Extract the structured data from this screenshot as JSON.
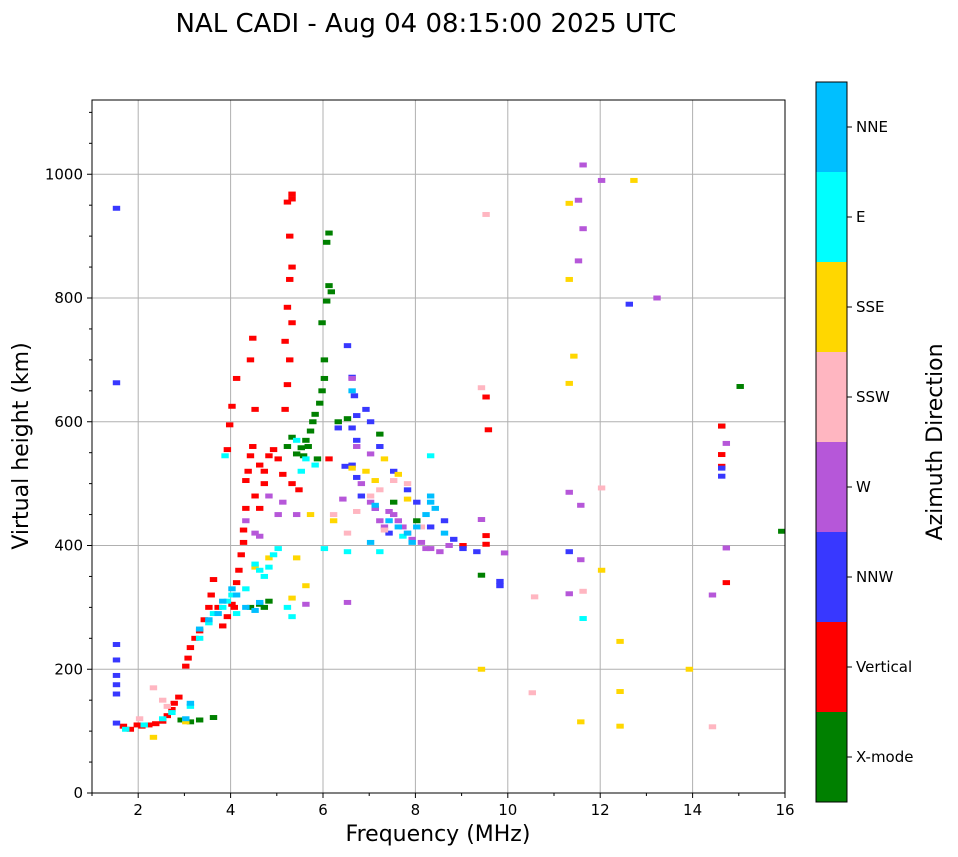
{
  "chart_data": {
    "type": "scatter",
    "title": "NAL CADI - Aug 04 08:15:00 2025 UTC",
    "xlabel": "Frequency (MHz)",
    "ylabel": "Virtual height (km)",
    "xlim": [
      1,
      16
    ],
    "ylim": [
      0,
      1120
    ],
    "xticks": [
      2,
      4,
      6,
      8,
      10,
      12,
      14,
      16
    ],
    "yticks": [
      0,
      200,
      400,
      600,
      800,
      1000
    ],
    "grid": true,
    "colorbar": {
      "label": "Azimuth Direction",
      "categories": [
        {
          "name": "X-mode",
          "color": "#008000"
        },
        {
          "name": "Vertical",
          "color": "#ff0000"
        },
        {
          "name": "NNW",
          "color": "#3838ff"
        },
        {
          "name": "W",
          "color": "#b657d9"
        },
        {
          "name": "SSW",
          "color": "#ffb6c1"
        },
        {
          "name": "SSE",
          "color": "#ffd700"
        },
        {
          "name": "E",
          "color": "#00ffff"
        },
        {
          "name": "NNE",
          "color": "#00bfff"
        }
      ]
    },
    "series": [
      {
        "name": "X-mode",
        "points": [
          [
            2.9,
            118
          ],
          [
            3.1,
            115
          ],
          [
            3.3,
            118
          ],
          [
            3.6,
            122
          ],
          [
            4.4,
            300
          ],
          [
            4.6,
            305
          ],
          [
            4.7,
            300
          ],
          [
            4.8,
            310
          ],
          [
            5.2,
            560
          ],
          [
            5.4,
            548
          ],
          [
            5.5,
            558
          ],
          [
            5.6,
            570
          ],
          [
            5.7,
            585
          ],
          [
            5.75,
            600
          ],
          [
            5.8,
            612
          ],
          [
            5.9,
            630
          ],
          [
            5.95,
            650
          ],
          [
            6.0,
            670
          ],
          [
            6.0,
            700
          ],
          [
            5.95,
            760
          ],
          [
            6.05,
            795
          ],
          [
            6.1,
            820
          ],
          [
            6.1,
            905
          ],
          [
            6.05,
            890
          ],
          [
            5.85,
            540
          ],
          [
            5.65,
            560
          ],
          [
            6.3,
            600
          ],
          [
            6.5,
            605
          ],
          [
            7.2,
            580
          ],
          [
            7.5,
            470
          ],
          [
            8.0,
            440
          ],
          [
            9.4,
            352
          ],
          [
            15.0,
            657
          ],
          [
            15.9,
            423
          ],
          [
            14.6,
            593
          ],
          [
            5.3,
            575
          ],
          [
            5.55,
            545
          ],
          [
            6.15,
            810
          ]
        ]
      },
      {
        "name": "Vertical",
        "points": [
          [
            1.65,
            108
          ],
          [
            1.8,
            103
          ],
          [
            1.95,
            110
          ],
          [
            2.05,
            108
          ],
          [
            2.2,
            110
          ],
          [
            2.35,
            112
          ],
          [
            2.5,
            116
          ],
          [
            2.6,
            125
          ],
          [
            2.7,
            135
          ],
          [
            2.75,
            145
          ],
          [
            2.85,
            155
          ],
          [
            3.0,
            205
          ],
          [
            3.05,
            218
          ],
          [
            3.1,
            235
          ],
          [
            3.2,
            250
          ],
          [
            3.3,
            262
          ],
          [
            3.4,
            280
          ],
          [
            3.5,
            300
          ],
          [
            3.55,
            320
          ],
          [
            3.6,
            345
          ],
          [
            3.7,
            300
          ],
          [
            3.8,
            270
          ],
          [
            3.9,
            285
          ],
          [
            4.0,
            305
          ],
          [
            4.05,
            300
          ],
          [
            4.1,
            340
          ],
          [
            4.15,
            360
          ],
          [
            4.2,
            385
          ],
          [
            4.25,
            405
          ],
          [
            4.25,
            425
          ],
          [
            4.3,
            505
          ],
          [
            4.35,
            520
          ],
          [
            4.4,
            545
          ],
          [
            4.45,
            560
          ],
          [
            4.6,
            530
          ],
          [
            4.7,
            520
          ],
          [
            4.8,
            545
          ],
          [
            4.9,
            555
          ],
          [
            5.0,
            540
          ],
          [
            5.1,
            515
          ],
          [
            5.15,
            620
          ],
          [
            5.2,
            660
          ],
          [
            5.25,
            700
          ],
          [
            5.3,
            760
          ],
          [
            5.2,
            785
          ],
          [
            5.15,
            730
          ],
          [
            5.25,
            830
          ],
          [
            5.3,
            850
          ],
          [
            5.2,
            955
          ],
          [
            5.3,
            960
          ],
          [
            5.3,
            968
          ],
          [
            5.25,
            900
          ],
          [
            4.5,
            620
          ],
          [
            4.4,
            700
          ],
          [
            4.45,
            735
          ],
          [
            4.1,
            670
          ],
          [
            4.0,
            625
          ],
          [
            3.95,
            595
          ],
          [
            3.9,
            555
          ],
          [
            4.3,
            460
          ],
          [
            4.5,
            480
          ],
          [
            4.6,
            460
          ],
          [
            4.7,
            500
          ],
          [
            5.45,
            490
          ],
          [
            5.3,
            500
          ],
          [
            9.0,
            400
          ],
          [
            9.5,
            402
          ],
          [
            9.5,
            416
          ],
          [
            9.55,
            587
          ],
          [
            9.5,
            640
          ],
          [
            14.7,
            340
          ],
          [
            14.6,
            593
          ],
          [
            14.6,
            528
          ],
          [
            14.6,
            547
          ],
          [
            6.1,
            540
          ]
        ]
      },
      {
        "name": "NNW",
        "points": [
          [
            1.5,
            945
          ],
          [
            1.5,
            663
          ],
          [
            1.5,
            240
          ],
          [
            1.5,
            215
          ],
          [
            1.5,
            190
          ],
          [
            1.5,
            175
          ],
          [
            1.5,
            160
          ],
          [
            1.5,
            113
          ],
          [
            6.5,
            723
          ],
          [
            6.6,
            672
          ],
          [
            6.65,
            642
          ],
          [
            6.7,
            610
          ],
          [
            6.6,
            590
          ],
          [
            6.7,
            570
          ],
          [
            6.6,
            530
          ],
          [
            6.7,
            510
          ],
          [
            6.45,
            528
          ],
          [
            6.9,
            620
          ],
          [
            7.0,
            600
          ],
          [
            7.2,
            560
          ],
          [
            7.5,
            520
          ],
          [
            7.8,
            490
          ],
          [
            8.0,
            470
          ],
          [
            8.3,
            430
          ],
          [
            8.6,
            440
          ],
          [
            8.8,
            410
          ],
          [
            9.0,
            395
          ],
          [
            9.3,
            390
          ],
          [
            9.8,
            342
          ],
          [
            9.8,
            335
          ],
          [
            11.3,
            390
          ],
          [
            12.6,
            790
          ],
          [
            14.6,
            512
          ],
          [
            14.6,
            525
          ],
          [
            6.8,
            480
          ],
          [
            7.1,
            460
          ],
          [
            7.4,
            420
          ],
          [
            6.3,
            590
          ]
        ]
      },
      {
        "name": "W",
        "points": [
          [
            4.3,
            440
          ],
          [
            4.5,
            420
          ],
          [
            4.6,
            415
          ],
          [
            4.8,
            480
          ],
          [
            5.0,
            450
          ],
          [
            5.1,
            470
          ],
          [
            5.4,
            450
          ],
          [
            5.6,
            305
          ],
          [
            6.5,
            308
          ],
          [
            6.6,
            670
          ],
          [
            6.7,
            560
          ],
          [
            6.8,
            500
          ],
          [
            7.0,
            470
          ],
          [
            7.1,
            460
          ],
          [
            7.2,
            440
          ],
          [
            7.3,
            430
          ],
          [
            7.4,
            455
          ],
          [
            7.5,
            450
          ],
          [
            7.6,
            440
          ],
          [
            7.7,
            430
          ],
          [
            7.8,
            420
          ],
          [
            7.9,
            410
          ],
          [
            8.1,
            405
          ],
          [
            8.3,
            395
          ],
          [
            8.5,
            390
          ],
          [
            8.7,
            400
          ],
          [
            9.4,
            442
          ],
          [
            9.9,
            388
          ],
          [
            11.6,
            1015
          ],
          [
            11.5,
            958
          ],
          [
            11.6,
            912
          ],
          [
            11.5,
            860
          ],
          [
            11.3,
            486
          ],
          [
            11.55,
            465
          ],
          [
            11.55,
            377
          ],
          [
            11.3,
            322
          ],
          [
            12.0,
            990
          ],
          [
            13.2,
            800
          ],
          [
            14.7,
            565
          ],
          [
            14.7,
            396
          ],
          [
            14.4,
            320
          ],
          [
            6.4,
            475
          ],
          [
            7.0,
            548
          ],
          [
            8.2,
            395
          ]
        ]
      },
      {
        "name": "SSW",
        "points": [
          [
            2.0,
            120
          ],
          [
            2.3,
            170
          ],
          [
            2.5,
            150
          ],
          [
            2.6,
            140
          ],
          [
            6.7,
            455
          ],
          [
            7.0,
            480
          ],
          [
            7.2,
            490
          ],
          [
            7.5,
            505
          ],
          [
            7.8,
            500
          ],
          [
            8.1,
            430
          ],
          [
            9.4,
            655
          ],
          [
            9.5,
            935
          ],
          [
            10.55,
            317
          ],
          [
            10.5,
            162
          ],
          [
            11.6,
            326
          ],
          [
            12.0,
            493
          ],
          [
            14.4,
            107
          ],
          [
            6.2,
            450
          ],
          [
            6.5,
            420
          ],
          [
            7.3,
            425
          ]
        ]
      },
      {
        "name": "SSE",
        "points": [
          [
            2.3,
            90
          ],
          [
            3.0,
            115
          ],
          [
            4.5,
            365
          ],
          [
            4.8,
            380
          ],
          [
            5.3,
            315
          ],
          [
            5.4,
            380
          ],
          [
            5.6,
            335
          ],
          [
            5.7,
            450
          ],
          [
            6.2,
            440
          ],
          [
            6.9,
            520
          ],
          [
            7.1,
            505
          ],
          [
            7.3,
            540
          ],
          [
            7.8,
            475
          ],
          [
            9.4,
            200
          ],
          [
            11.3,
            830
          ],
          [
            11.4,
            706
          ],
          [
            11.3,
            662
          ],
          [
            11.3,
            953
          ],
          [
            12.0,
            360
          ],
          [
            12.4,
            245
          ],
          [
            12.4,
            164
          ],
          [
            12.4,
            108
          ],
          [
            11.55,
            115
          ],
          [
            12.7,
            990
          ],
          [
            13.9,
            200
          ],
          [
            6.6,
            525
          ],
          [
            7.6,
            515
          ]
        ]
      },
      {
        "name": "E",
        "points": [
          [
            1.7,
            103
          ],
          [
            2.1,
            110
          ],
          [
            2.5,
            120
          ],
          [
            2.7,
            130
          ],
          [
            3.1,
            140
          ],
          [
            3.3,
            250
          ],
          [
            3.5,
            275
          ],
          [
            3.6,
            290
          ],
          [
            3.8,
            300
          ],
          [
            3.9,
            310
          ],
          [
            4.0,
            320
          ],
          [
            4.1,
            290
          ],
          [
            4.3,
            330
          ],
          [
            4.5,
            370
          ],
          [
            4.6,
            360
          ],
          [
            4.7,
            350
          ],
          [
            4.8,
            365
          ],
          [
            4.9,
            385
          ],
          [
            5.0,
            395
          ],
          [
            5.2,
            300
          ],
          [
            5.3,
            285
          ],
          [
            5.5,
            520
          ],
          [
            5.6,
            540
          ],
          [
            5.8,
            530
          ],
          [
            5.4,
            570
          ],
          [
            3.85,
            545
          ],
          [
            8.3,
            545
          ],
          [
            11.6,
            282
          ],
          [
            7.2,
            390
          ],
          [
            7.7,
            415
          ],
          [
            6.5,
            390
          ],
          [
            6.0,
            395
          ]
        ]
      },
      {
        "name": "NNE",
        "points": [
          [
            3.0,
            120
          ],
          [
            3.1,
            145
          ],
          [
            3.3,
            265
          ],
          [
            3.5,
            280
          ],
          [
            3.7,
            290
          ],
          [
            3.8,
            310
          ],
          [
            4.0,
            330
          ],
          [
            4.1,
            320
          ],
          [
            4.3,
            300
          ],
          [
            4.5,
            295
          ],
          [
            4.6,
            308
          ],
          [
            6.6,
            650
          ],
          [
            7.1,
            465
          ],
          [
            7.4,
            440
          ],
          [
            7.6,
            430
          ],
          [
            7.8,
            420
          ],
          [
            8.0,
            430
          ],
          [
            8.2,
            450
          ],
          [
            8.3,
            470
          ],
          [
            8.3,
            480
          ],
          [
            8.4,
            460
          ],
          [
            8.6,
            420
          ],
          [
            7.0,
            405
          ],
          [
            7.9,
            405
          ]
        ]
      }
    ]
  }
}
